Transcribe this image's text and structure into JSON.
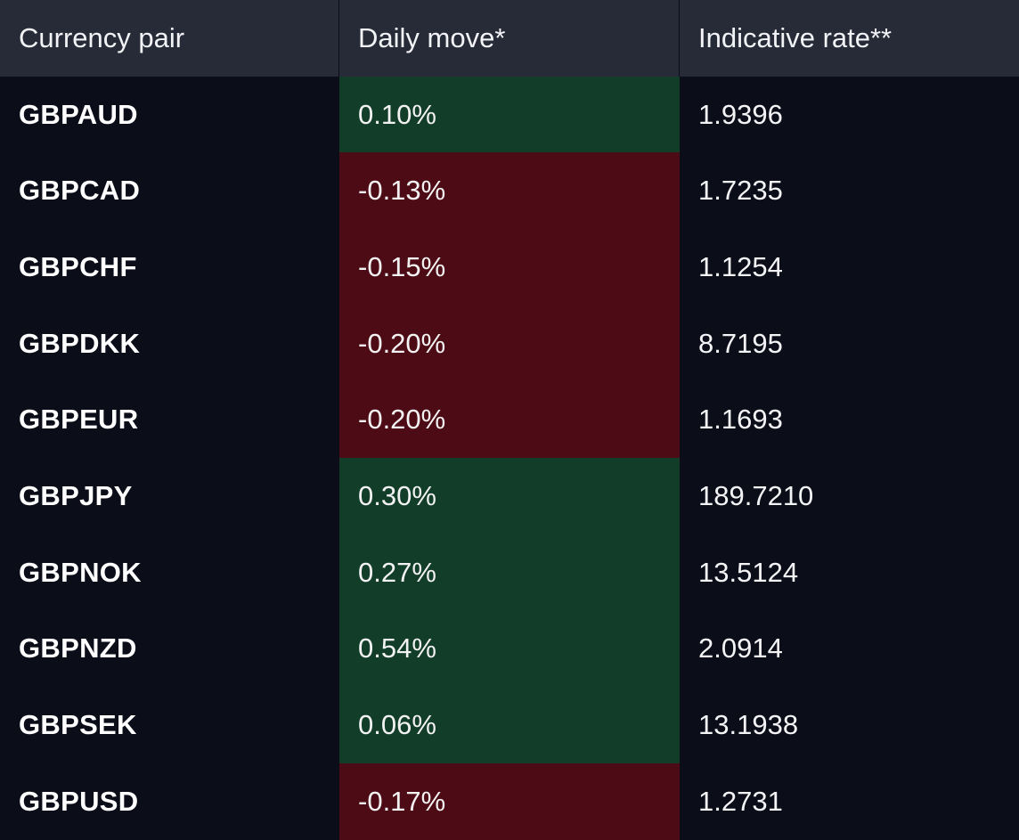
{
  "colors": {
    "background": "#0b0d19",
    "header_background": "#272a37",
    "positive_move": "#123d29",
    "negative_move": "#4d0b15",
    "text": "#ffffff"
  },
  "table": {
    "headers": {
      "pair": "Currency pair",
      "move": "Daily move*",
      "rate": "Indicative rate**"
    },
    "rows": [
      {
        "pair": "GBPAUD",
        "move": "0.10%",
        "rate": "1.9396",
        "direction": "up"
      },
      {
        "pair": "GBPCAD",
        "move": "-0.13%",
        "rate": "1.7235",
        "direction": "down"
      },
      {
        "pair": "GBPCHF",
        "move": "-0.15%",
        "rate": "1.1254",
        "direction": "down"
      },
      {
        "pair": "GBPDKK",
        "move": "-0.20%",
        "rate": "8.7195",
        "direction": "down"
      },
      {
        "pair": "GBPEUR",
        "move": "-0.20%",
        "rate": "1.1693",
        "direction": "down"
      },
      {
        "pair": "GBPJPY",
        "move": "0.30%",
        "rate": "189.7210",
        "direction": "up"
      },
      {
        "pair": "GBPNOK",
        "move": "0.27%",
        "rate": "13.5124",
        "direction": "up"
      },
      {
        "pair": "GBPNZD",
        "move": "0.54%",
        "rate": "2.0914",
        "direction": "up"
      },
      {
        "pair": "GBPSEK",
        "move": "0.06%",
        "rate": "13.1938",
        "direction": "up"
      },
      {
        "pair": "GBPUSD",
        "move": "-0.17%",
        "rate": "1.2731",
        "direction": "down"
      }
    ]
  }
}
